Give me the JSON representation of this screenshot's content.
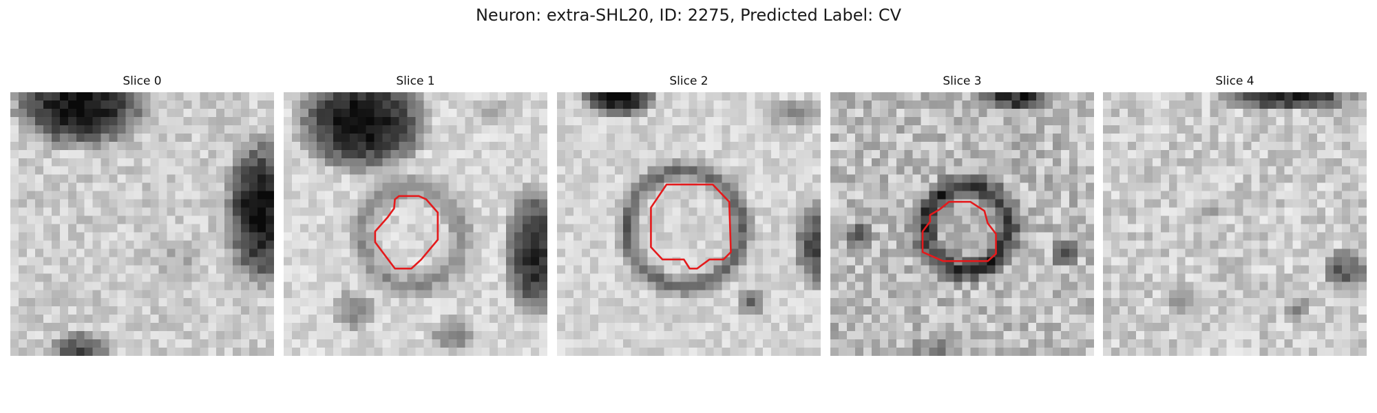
{
  "figure": {
    "title": "Neuron: extra-SHL20, ID: 2275, Predicted Label: CV"
  },
  "panels": [
    {
      "title": "Slice 0",
      "has_contour": false
    },
    {
      "title": "Slice 1",
      "has_contour": true
    },
    {
      "title": "Slice 2",
      "has_contour": true
    },
    {
      "title": "Slice 3",
      "has_contour": true
    },
    {
      "title": "Slice 4",
      "has_contour": false
    }
  ],
  "colors": {
    "contour": "#e41a1c",
    "background": "#ffffff"
  }
}
